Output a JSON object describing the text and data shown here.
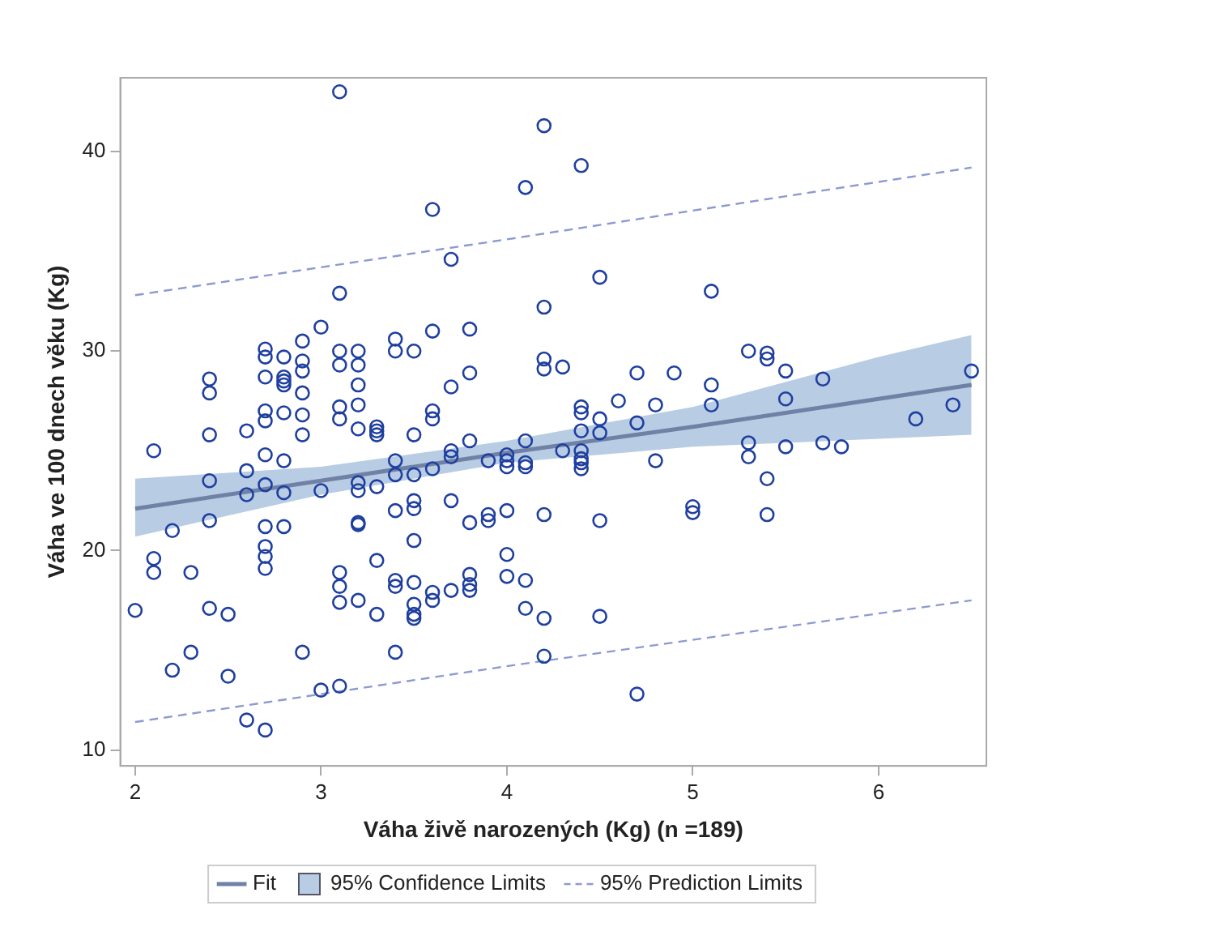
{
  "chart_data": {
    "type": "scatter",
    "xlabel": "Váha živě narozených (Kg) (n =189)",
    "ylabel": "Váha ve 100 dnech věku (Kg)",
    "xlim": [
      1.92,
      6.58
    ],
    "ylim": [
      9.2,
      43.7
    ],
    "xticks": [
      2,
      3,
      4,
      5,
      6
    ],
    "yticks": [
      10,
      20,
      30,
      40
    ],
    "grid": false,
    "legend": "bottom",
    "series": [
      {
        "type": "line",
        "name": "Fit",
        "color": "#7081a6",
        "x": [
          2,
          3,
          4,
          5,
          6,
          6.5
        ],
        "values": [
          22.1,
          23.5,
          24.9,
          26.2,
          27.6,
          28.3
        ],
        "lower": [
          20.7,
          22.8,
          24.4,
          25.2,
          25.6,
          25.8
        ],
        "upper": [
          23.6,
          24.2,
          25.5,
          27.2,
          29.7,
          30.8
        ]
      },
      {
        "type": "area",
        "name": "95% Confidence Limits",
        "color": "#b8cce4"
      },
      {
        "type": "line",
        "name": "95% Prediction Limits",
        "color": "#8c9ad0",
        "line_style": "dashed",
        "x": [
          2,
          4,
          6.5
        ],
        "values": [
          32.8,
          35.6,
          39.2
        ]
      },
      {
        "type": "line",
        "color": "#8c9ad0",
        "line_style": "dashed",
        "x": [
          2,
          4,
          6.5
        ],
        "values": [
          11.4,
          14.2,
          17.5
        ]
      },
      {
        "type": "scatter",
        "color": "#1f3f9f",
        "marker": "circle",
        "x": [
          2.0,
          2.1,
          2.1,
          2.1,
          2.2,
          2.2,
          2.3,
          2.3,
          2.4,
          2.4,
          2.4,
          2.4,
          2.4,
          2.4,
          2.5,
          2.5,
          2.6,
          2.6,
          2.6,
          2.6,
          2.7,
          2.7,
          2.7,
          2.7,
          2.7,
          2.7,
          2.7,
          2.7,
          2.7,
          2.7,
          2.7,
          2.7,
          2.8,
          2.8,
          2.8,
          2.8,
          2.8,
          2.8,
          2.8,
          2.8,
          2.9,
          2.9,
          2.9,
          2.9,
          2.9,
          2.9,
          2.9,
          3.0,
          3.0,
          3.0,
          3.1,
          3.1,
          3.1,
          3.1,
          3.1,
          3.1,
          3.1,
          3.1,
          3.1,
          3.1,
          3.2,
          3.2,
          3.2,
          3.2,
          3.2,
          3.2,
          3.2,
          3.2,
          3.2,
          3.2,
          3.3,
          3.3,
          3.3,
          3.3,
          3.3,
          3.3,
          3.4,
          3.4,
          3.4,
          3.4,
          3.4,
          3.4,
          3.4,
          3.4,
          3.5,
          3.5,
          3.5,
          3.5,
          3.5,
          3.5,
          3.5,
          3.5,
          3.5,
          3.5,
          3.6,
          3.6,
          3.6,
          3.6,
          3.6,
          3.6,
          3.6,
          3.7,
          3.7,
          3.7,
          3.7,
          3.7,
          3.7,
          3.8,
          3.8,
          3.8,
          3.8,
          3.8,
          3.8,
          3.8,
          3.9,
          3.9,
          3.9,
          4.0,
          4.0,
          4.0,
          4.0,
          4.0,
          4.0,
          4.1,
          4.1,
          4.1,
          4.1,
          4.1,
          4.1,
          4.2,
          4.2,
          4.2,
          4.2,
          4.2,
          4.2,
          4.2,
          4.3,
          4.3,
          4.4,
          4.4,
          4.4,
          4.4,
          4.4,
          4.4,
          4.4,
          4.4,
          4.5,
          4.5,
          4.5,
          4.5,
          4.5,
          4.6,
          4.7,
          4.7,
          4.7,
          4.8,
          4.8,
          4.9,
          5.0,
          5.0,
          5.1,
          5.1,
          5.1,
          5.3,
          5.3,
          5.3,
          5.4,
          5.4,
          5.4,
          5.4,
          5.5,
          5.5,
          5.5,
          5.7,
          5.7,
          5.8,
          6.2,
          6.4,
          6.5
        ],
        "values": [
          17.0,
          25.0,
          19.6,
          18.9,
          14.0,
          21.0,
          18.9,
          14.9,
          28.6,
          27.9,
          25.8,
          23.5,
          21.5,
          17.1,
          16.8,
          13.7,
          26.0,
          24.0,
          22.8,
          11.5,
          30.1,
          29.7,
          28.7,
          27.0,
          26.5,
          24.8,
          23.3,
          21.2,
          20.2,
          19.7,
          19.1,
          11.0,
          29.7,
          28.7,
          28.5,
          28.3,
          26.9,
          24.5,
          22.9,
          21.2,
          30.5,
          29.5,
          29.0,
          27.9,
          26.8,
          25.8,
          14.9,
          31.2,
          23.0,
          13.0,
          43.0,
          32.9,
          30.0,
          29.3,
          27.2,
          26.6,
          18.9,
          18.2,
          17.4,
          13.2,
          30.0,
          29.3,
          28.3,
          27.3,
          26.1,
          23.4,
          23.0,
          21.4,
          21.3,
          17.5,
          26.2,
          26.0,
          25.8,
          23.2,
          19.5,
          16.8,
          30.6,
          30.0,
          24.5,
          23.8,
          22.0,
          18.5,
          18.2,
          14.9,
          30.0,
          25.8,
          23.8,
          22.5,
          22.1,
          20.5,
          18.4,
          17.3,
          16.8,
          16.6,
          37.1,
          31.0,
          27.0,
          26.6,
          24.1,
          17.9,
          17.5,
          34.6,
          28.2,
          25.0,
          24.7,
          22.5,
          18.0,
          31.1,
          28.9,
          25.5,
          21.4,
          18.8,
          18.3,
          18.0,
          24.5,
          21.8,
          21.5,
          24.8,
          24.5,
          24.2,
          22.0,
          19.8,
          18.7,
          38.2,
          25.5,
          24.4,
          24.2,
          18.5,
          17.1,
          41.3,
          32.2,
          29.6,
          29.1,
          21.8,
          16.6,
          14.7,
          29.2,
          25.0,
          39.3,
          27.2,
          26.9,
          26.0,
          25.0,
          24.6,
          24.4,
          24.1,
          33.7,
          26.6,
          25.9,
          21.5,
          16.7,
          27.5,
          28.9,
          26.4,
          12.8,
          27.3,
          24.5,
          28.9,
          22.2,
          21.9,
          33.0,
          28.3,
          27.3,
          30.0,
          25.4,
          24.7,
          29.9,
          29.6,
          23.6,
          21.8,
          29.0,
          27.6,
          25.2,
          28.6,
          25.4,
          25.2,
          26.6,
          27.3,
          29.0
        ]
      }
    ]
  }
}
